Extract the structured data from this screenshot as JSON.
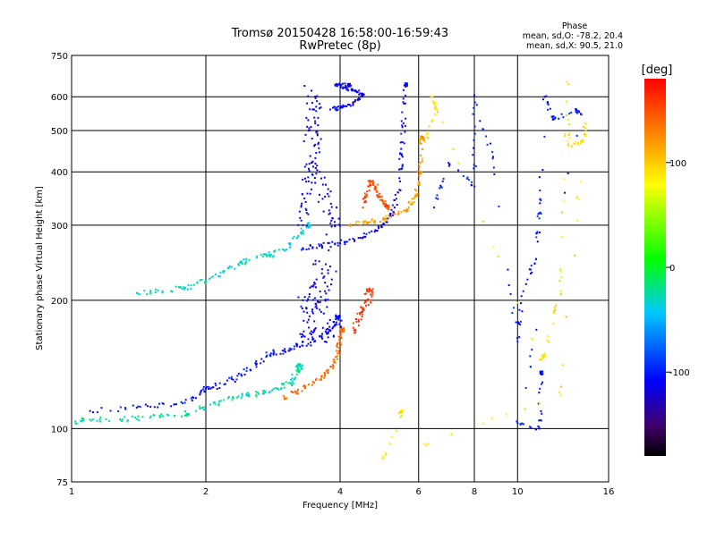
{
  "chart_data": {
    "type": "scatter",
    "title": "Tromsø 20150428 16:58:00-16:59:43",
    "subtitle": "RwPretec (8p)",
    "xlabel": "Frequency [MHz]",
    "ylabel": "Stationary phase Virtual Height [km]",
    "x_scale": "log",
    "y_scale": "log",
    "xlim": [
      1,
      16
    ],
    "ylim": [
      75,
      750
    ],
    "x_ticks": [
      1,
      2,
      4,
      6,
      8,
      10,
      16
    ],
    "y_ticks": [
      75,
      100,
      200,
      300,
      400,
      500,
      600,
      750
    ],
    "grid": true,
    "stats": {
      "heading": "Phase",
      "line_o": "mean, sd,O: -78.2, 20.4",
      "line_x": "mean, sd,X:  90.5, 21.0"
    },
    "colorbar": {
      "label": "[deg]",
      "range": [
        -180,
        180
      ],
      "ticks": [
        100,
        0,
        -100
      ],
      "colormap": "rainbow"
    },
    "series": [
      {
        "tag": "o-E-low",
        "phase": -25,
        "spread": 3,
        "points": [
          [
            1.02,
            104
          ],
          [
            1.1,
            105
          ],
          [
            1.3,
            105
          ],
          [
            1.5,
            106
          ],
          [
            1.7,
            107
          ],
          [
            1.9,
            110
          ],
          [
            2.1,
            114
          ],
          [
            2.3,
            118
          ],
          [
            2.5,
            120
          ],
          [
            2.7,
            121
          ],
          [
            2.9,
            124
          ],
          [
            3.1,
            128
          ],
          [
            3.2,
            134
          ],
          [
            3.25,
            140
          ]
        ]
      },
      {
        "tag": "o-E-upper",
        "phase": -105,
        "spread": 3,
        "points": [
          [
            1.1,
            110
          ],
          [
            1.4,
            112
          ],
          [
            1.7,
            114
          ],
          [
            1.9,
            118
          ],
          [
            2.0,
            124
          ],
          [
            2.2,
            127
          ],
          [
            2.4,
            134
          ],
          [
            2.6,
            142
          ],
          [
            2.8,
            150
          ],
          [
            3.0,
            152
          ],
          [
            3.2,
            156
          ],
          [
            3.5,
            160
          ],
          [
            3.8,
            170
          ],
          [
            3.95,
            182
          ]
        ]
      },
      {
        "tag": "x-E-trace",
        "phase": 140,
        "spread": 2.5,
        "points": [
          [
            3.0,
            118
          ],
          [
            3.2,
            122
          ],
          [
            3.5,
            128
          ],
          [
            3.7,
            133
          ],
          [
            3.85,
            140
          ],
          [
            3.95,
            150
          ],
          [
            4.0,
            160
          ],
          [
            4.05,
            170
          ]
        ]
      },
      {
        "tag": "o-F-low",
        "phase": -30,
        "spread": 3,
        "points": [
          [
            1.4,
            208
          ],
          [
            1.6,
            210
          ],
          [
            1.8,
            214
          ],
          [
            2.0,
            222
          ],
          [
            2.2,
            234
          ],
          [
            2.4,
            245
          ],
          [
            2.6,
            252
          ],
          [
            2.8,
            256
          ],
          [
            3.0,
            262
          ],
          [
            3.2,
            280
          ],
          [
            3.4,
            300
          ]
        ]
      },
      {
        "tag": "o-F2",
        "phase": -110,
        "spread": 2.5,
        "points": [
          [
            3.3,
            265
          ],
          [
            3.6,
            268
          ],
          [
            4.0,
            272
          ],
          [
            4.4,
            280
          ],
          [
            4.8,
            292
          ],
          [
            5.1,
            305
          ],
          [
            5.3,
            330
          ],
          [
            5.45,
            380
          ],
          [
            5.5,
            440
          ],
          [
            5.55,
            520
          ],
          [
            5.6,
            640
          ]
        ]
      },
      {
        "tag": "x-F2",
        "phase": 120,
        "spread": 2.5,
        "points": [
          [
            4.2,
            300
          ],
          [
            4.6,
            305
          ],
          [
            5.0,
            310
          ],
          [
            5.4,
            318
          ],
          [
            5.7,
            330
          ],
          [
            5.9,
            350
          ],
          [
            6.0,
            380
          ],
          [
            6.05,
            420
          ],
          [
            6.1,
            480
          ]
        ]
      },
      {
        "tag": "x-F-mid",
        "phase": 150,
        "spread": 2.5,
        "points": [
          [
            4.5,
            330
          ],
          [
            4.6,
            360
          ],
          [
            4.7,
            380
          ],
          [
            4.8,
            370
          ],
          [
            4.9,
            350
          ],
          [
            5.0,
            340
          ],
          [
            5.1,
            330
          ]
        ]
      },
      {
        "tag": "o-F-spread",
        "phase": -115,
        "spread": 8,
        "points": [
          [
            3.3,
            300
          ],
          [
            3.35,
            340
          ],
          [
            3.4,
            380
          ],
          [
            3.45,
            420
          ],
          [
            3.5,
            460
          ],
          [
            3.4,
            500
          ],
          [
            3.5,
            560
          ],
          [
            3.45,
            620
          ],
          [
            3.6,
            400
          ],
          [
            3.7,
            350
          ],
          [
            3.8,
            320
          ],
          [
            3.9,
            300
          ],
          [
            3.3,
            200
          ],
          [
            3.4,
            180
          ],
          [
            3.5,
            220
          ],
          [
            3.6,
            190
          ],
          [
            3.7,
            210
          ],
          [
            3.8,
            240
          ],
          [
            3.3,
            160
          ],
          [
            3.5,
            170
          ],
          [
            3.7,
            160
          ],
          [
            3.9,
            175
          ]
        ]
      },
      {
        "tag": "x-F-spread",
        "phase": 160,
        "spread": 4,
        "points": [
          [
            4.3,
            170
          ],
          [
            4.4,
            180
          ],
          [
            4.5,
            190
          ],
          [
            4.6,
            200
          ],
          [
            4.65,
            210
          ]
        ]
      },
      {
        "tag": "o-F-top",
        "phase": -110,
        "spread": 2,
        "points": [
          [
            3.8,
            560
          ],
          [
            4.0,
            565
          ],
          [
            4.2,
            575
          ],
          [
            4.4,
            590
          ],
          [
            4.5,
            610
          ],
          [
            4.3,
            620
          ],
          [
            4.1,
            630
          ],
          [
            3.9,
            640
          ],
          [
            4.2,
            640
          ]
        ]
      },
      {
        "tag": "scatter-hf",
        "phase": -100,
        "spread": 2,
        "points": [
          [
            6.5,
            330
          ],
          [
            7.0,
            420
          ],
          [
            8.0,
            370
          ],
          [
            8.0,
            605
          ],
          [
            8.8,
            430
          ],
          [
            10.0,
            160
          ],
          [
            10.3,
            210
          ],
          [
            11.0,
            250
          ],
          [
            11.2,
            320
          ],
          [
            11.5,
            600
          ],
          [
            12.0,
            530
          ],
          [
            13.5,
            560
          ],
          [
            13.9,
            545
          ],
          [
            10.0,
            103
          ],
          [
            11.2,
            100
          ],
          [
            11.3,
            135
          ]
        ]
      },
      {
        "tag": "scatter-hf-x",
        "phase": 90,
        "spread": 2,
        "points": [
          [
            6.2,
            470
          ],
          [
            6.6,
            560
          ],
          [
            6.4,
            600
          ],
          [
            11.3,
            145
          ],
          [
            11.5,
            150
          ],
          [
            12.5,
            210
          ],
          [
            12.9,
            650
          ],
          [
            13.0,
            460
          ],
          [
            14.0,
            470
          ],
          [
            14.2,
            520
          ],
          [
            12.5,
            120
          ],
          [
            5.0,
            85
          ],
          [
            5.5,
            110
          ]
        ]
      }
    ]
  }
}
